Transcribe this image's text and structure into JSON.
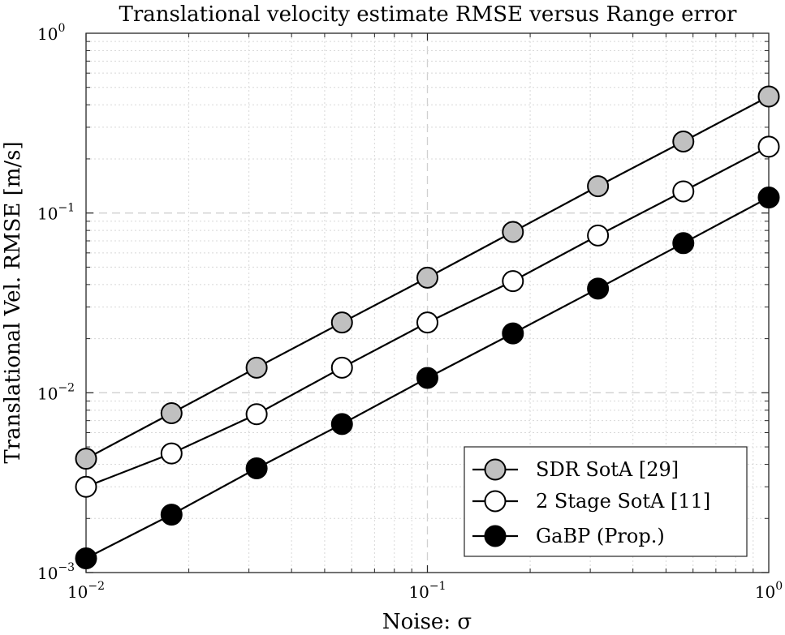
{
  "chart_data": {
    "type": "line",
    "title": "Translational velocity estimate RMSE versus Range error",
    "xlabel": "Noise: σ",
    "ylabel": "Translational Vel. RMSE [m/s]",
    "xscale": "log",
    "yscale": "log",
    "xlim": [
      0.01,
      1
    ],
    "ylim": [
      0.001,
      1
    ],
    "xticks": [
      {
        "base": "10",
        "exp": "−2"
      },
      {
        "base": "10",
        "exp": "−1"
      },
      {
        "base": "10",
        "exp": "0"
      }
    ],
    "yticks": [
      {
        "base": "10",
        "exp": "−3"
      },
      {
        "base": "10",
        "exp": "−2"
      },
      {
        "base": "10",
        "exp": "−1"
      },
      {
        "base": "10",
        "exp": "0"
      }
    ],
    "grid": true,
    "legend_position": "bottom-right",
    "x": [
      0.01,
      0.0178,
      0.0316,
      0.0562,
      0.1,
      0.178,
      0.316,
      0.562,
      1.0
    ],
    "series": [
      {
        "name": "SDR SotA [29]",
        "marker_fill": "#c0c0c0",
        "values": [
          0.0043,
          0.0077,
          0.0138,
          0.0246,
          0.0437,
          0.0785,
          0.141,
          0.25,
          0.445
        ]
      },
      {
        "name": "2 Stage SotA [11]",
        "marker_fill": "#ffffff",
        "values": [
          0.003,
          0.0046,
          0.0076,
          0.0138,
          0.0246,
          0.0418,
          0.075,
          0.132,
          0.234
        ]
      },
      {
        "name": "GaBP (Prop.)",
        "marker_fill": "#000000",
        "values": [
          0.0012,
          0.0021,
          0.0038,
          0.0067,
          0.0121,
          0.0214,
          0.038,
          0.068,
          0.122
        ]
      }
    ],
    "colors": {
      "line": "#000000",
      "grid_major": "#d0d0d0",
      "grid_minor": "#d8d8d8",
      "background": "#ffffff"
    }
  }
}
